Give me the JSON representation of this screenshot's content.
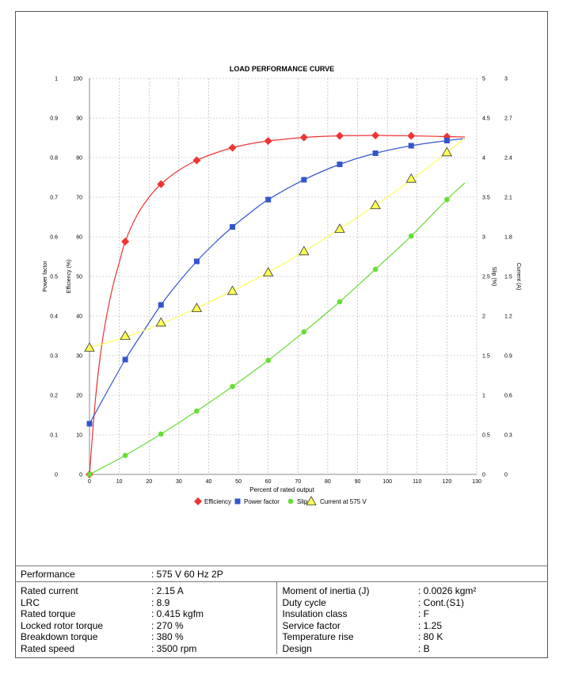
{
  "chart_data": {
    "type": "line",
    "title": "LOAD PERFORMANCE CURVE",
    "xlabel": "Percent of rated output",
    "xlim": [
      0,
      130
    ],
    "xticks": [
      0,
      10,
      20,
      30,
      40,
      50,
      60,
      70,
      80,
      90,
      100,
      110,
      120,
      130
    ],
    "axes": {
      "power_factor": {
        "label": "Power factor",
        "lim": [
          0,
          1
        ],
        "ticks": [
          "0",
          "0.1",
          "0.2",
          "0.3",
          "0.4",
          "0.5",
          "0.6",
          "0.7",
          "0.8",
          "0.9",
          "1"
        ]
      },
      "efficiency": {
        "label": "Efficiency (%)",
        "lim": [
          0,
          100
        ],
        "ticks": [
          "0",
          "10",
          "20",
          "30",
          "40",
          "50",
          "60",
          "70",
          "80",
          "90",
          "100"
        ]
      },
      "slip": {
        "label": "Slip (%)",
        "lim": [
          0,
          5
        ],
        "ticks": [
          "0",
          "0.5",
          "1",
          "1.5",
          "2",
          "2.5",
          "3",
          "3.5",
          "4",
          "4.5",
          "5"
        ]
      },
      "current": {
        "label": "Current (A)",
        "lim": [
          0,
          3
        ],
        "ticks": [
          "0",
          "0.3",
          "0.6",
          "0.9",
          "1.2",
          "1.5",
          "1.8",
          "2.1",
          "2.4",
          "2.7",
          "3"
        ]
      }
    },
    "grid": true,
    "legend_position": "bottom",
    "series": [
      {
        "name": "Efficiency",
        "axis": "efficiency",
        "color": "#ee3333",
        "marker": "diamond",
        "x": [
          0,
          12,
          24,
          36,
          48,
          60,
          72,
          84,
          96,
          108,
          120
        ],
        "values": [
          0,
          58.8,
          73.3,
          79.3,
          82.5,
          84.2,
          85.1,
          85.5,
          85.6,
          85.5,
          85.3
        ],
        "curve_x": [
          0,
          2,
          4,
          6,
          8,
          10,
          12,
          16,
          20,
          24,
          30,
          36,
          42,
          48,
          54,
          60,
          72,
          84,
          96,
          108,
          120,
          126
        ],
        "curve_y": [
          0,
          19,
          32,
          41,
          48,
          53.5,
          58.8,
          65.5,
          70,
          73.3,
          76.8,
          79.3,
          81.1,
          82.5,
          83.5,
          84.2,
          85.1,
          85.5,
          85.6,
          85.5,
          85.3,
          85.2
        ]
      },
      {
        "name": "Power factor",
        "axis": "power_factor",
        "color": "#3355cc",
        "marker": "square",
        "x": [
          0,
          12,
          24,
          36,
          48,
          60,
          72,
          84,
          96,
          108,
          120
        ],
        "values": [
          0.128,
          0.29,
          0.428,
          0.538,
          0.625,
          0.694,
          0.744,
          0.783,
          0.811,
          0.83,
          0.843
        ],
        "curve_x": [
          0,
          6,
          12,
          18,
          24,
          30,
          36,
          42,
          48,
          54,
          60,
          72,
          84,
          96,
          108,
          120,
          126
        ],
        "curve_y": [
          0.128,
          0.21,
          0.29,
          0.36,
          0.428,
          0.486,
          0.538,
          0.584,
          0.625,
          0.661,
          0.694,
          0.744,
          0.783,
          0.811,
          0.83,
          0.843,
          0.848
        ]
      },
      {
        "name": "Slip",
        "axis": "slip",
        "color": "#66dd33",
        "marker": "circle",
        "x": [
          0,
          12,
          24,
          36,
          48,
          60,
          72,
          84,
          96,
          108,
          120
        ],
        "values": [
          0,
          0.24,
          0.51,
          0.8,
          1.11,
          1.44,
          1.8,
          2.18,
          2.59,
          3.01,
          3.47
        ],
        "curve_x": [
          0,
          12,
          24,
          36,
          48,
          60,
          72,
          84,
          96,
          108,
          120,
          126
        ],
        "curve_y": [
          0,
          0.24,
          0.51,
          0.8,
          1.11,
          1.44,
          1.8,
          2.18,
          2.59,
          3.01,
          3.47,
          3.68
        ]
      },
      {
        "name": "Current at 575 V",
        "axis": "current",
        "color": "#ffff55",
        "marker": "triangle",
        "x": [
          0,
          12,
          24,
          36,
          48,
          60,
          72,
          84,
          96,
          108,
          120
        ],
        "values": [
          0.96,
          1.05,
          1.15,
          1.26,
          1.39,
          1.53,
          1.69,
          1.86,
          2.04,
          2.24,
          2.44
        ],
        "curve_x": [
          0,
          12,
          24,
          36,
          48,
          60,
          72,
          84,
          96,
          108,
          120,
          126
        ],
        "curve_y": [
          0.96,
          1.04,
          1.14,
          1.26,
          1.39,
          1.53,
          1.69,
          1.86,
          2.04,
          2.23,
          2.44,
          2.55
        ]
      }
    ]
  },
  "specs": {
    "performance_label": "Performance",
    "performance_value": ": 575 V 60 Hz 2P",
    "left": [
      {
        "label": "Rated current",
        "value": ": 2.15 A"
      },
      {
        "label": "LRC",
        "value": ": 8.9"
      },
      {
        "label": "Rated torque",
        "value": ": 0.415 kgfm"
      },
      {
        "label": "Locked rotor torque",
        "value": ": 270 %"
      },
      {
        "label": "Breakdown torque",
        "value": ": 380 %"
      },
      {
        "label": "Rated speed",
        "value": ": 3500 rpm"
      }
    ],
    "right": [
      {
        "label": "Moment of inertia (J)",
        "value": ": 0.0026 kgm²"
      },
      {
        "label": "Duty cycle",
        "value": ": Cont.(S1)"
      },
      {
        "label": "Insulation class",
        "value": ": F"
      },
      {
        "label": "Service factor",
        "value": ": 1.25"
      },
      {
        "label": "Temperature rise",
        "value": ": 80 K"
      },
      {
        "label": "Design",
        "value": ": B"
      }
    ]
  }
}
